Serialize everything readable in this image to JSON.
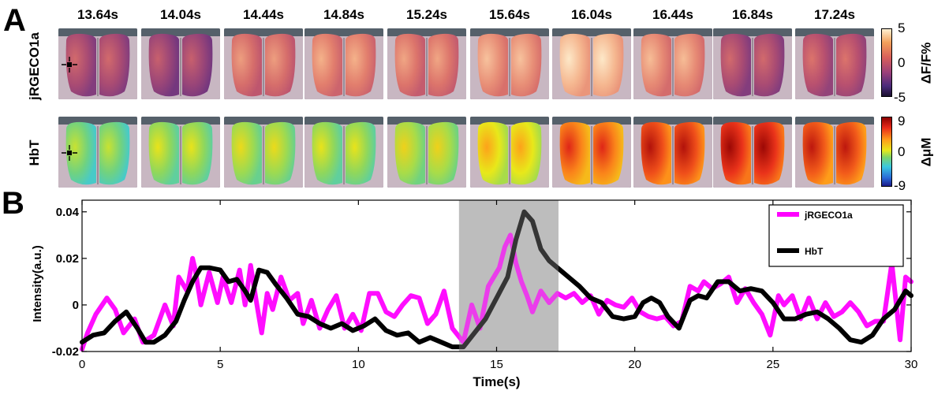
{
  "panels": {
    "a_letter": "A",
    "b_letter": "B"
  },
  "timepoints": [
    "13.64s",
    "14.04s",
    "14.44s",
    "14.84s",
    "15.24s",
    "15.64s",
    "16.04s",
    "16.44s",
    "16.84s",
    "17.24s"
  ],
  "rows": [
    {
      "label": "jRGECO1a",
      "colorbar": {
        "max": "5",
        "mid": "0",
        "min": "-5",
        "unit": "ΔF/F%"
      }
    },
    {
      "label": "HbT",
      "colorbar": {
        "max": "9",
        "mid": "0",
        "min": "-9",
        "unit": "ΔμM"
      }
    }
  ],
  "colors": {
    "jrgeco": "#ff00ff",
    "hbt": "#000000",
    "shade": "#bdbdbd"
  },
  "frame_levels": {
    "jrgeco": [
      0.35,
      0.3,
      0.55,
      0.62,
      0.58,
      0.68,
      0.82,
      0.66,
      0.35,
      0.4
    ],
    "hbt": [
      0.3,
      0.36,
      0.38,
      0.36,
      0.4,
      0.5,
      0.7,
      0.78,
      0.82,
      0.76
    ]
  },
  "chart_data": {
    "type": "line",
    "xlabel": "Time(s)",
    "ylabel": "Intensity(a.u.)",
    "xlim": [
      0,
      30
    ],
    "ylim": [
      -0.02,
      0.045
    ],
    "xticks": [
      0,
      5,
      10,
      15,
      20,
      25,
      30
    ],
    "yticks": [
      -0.02,
      0,
      0.02,
      0.04
    ],
    "ytick_labels": [
      "-0.02",
      "0",
      "0.02",
      "0.04"
    ],
    "shaded_interval": [
      13.64,
      17.24
    ],
    "legend_position": "top-right",
    "series": [
      {
        "name": "jRGECO1a",
        "x": [
          0,
          0.2,
          0.5,
          0.9,
          1.2,
          1.5,
          1.9,
          2.2,
          2.6,
          3.0,
          3.3,
          3.5,
          3.8,
          4.0,
          4.1,
          4.3,
          4.6,
          4.9,
          5.1,
          5.4,
          5.7,
          5.9,
          6.1,
          6.3,
          6.5,
          6.7,
          6.9,
          7.2,
          7.5,
          7.8,
          8.0,
          8.3,
          8.6,
          8.9,
          9.2,
          9.5,
          9.8,
          10.1,
          10.4,
          10.7,
          11.0,
          11.3,
          11.6,
          11.9,
          12.2,
          12.5,
          12.8,
          13.1,
          13.4,
          13.8,
          14.1,
          14.4,
          14.7,
          14.9,
          15.1,
          15.3,
          15.5,
          15.7,
          15.9,
          16.1,
          16.3,
          16.6,
          16.9,
          17.2,
          17.5,
          17.8,
          18.1,
          18.4,
          18.7,
          19.0,
          19.3,
          19.6,
          19.9,
          20.2,
          20.5,
          20.8,
          21.1,
          21.4,
          21.7,
          22.0,
          22.3,
          22.5,
          22.8,
          23.1,
          23.4,
          23.7,
          24.0,
          24.3,
          24.6,
          24.9,
          25.2,
          25.4,
          25.7,
          26.0,
          26.3,
          26.6,
          26.9,
          27.2,
          27.5,
          27.8,
          28.1,
          28.4,
          28.7,
          29.0,
          29.3,
          29.6,
          29.8,
          30.0
        ],
        "y": [
          -0.019,
          -0.012,
          -0.004,
          0.003,
          -0.002,
          -0.012,
          -0.006,
          -0.016,
          -0.013,
          0.0,
          -0.009,
          0.012,
          0.006,
          0.02,
          0.015,
          0.0,
          0.014,
          0.001,
          0.012,
          0.001,
          0.015,
          0.0,
          0.017,
          0.002,
          -0.012,
          0.005,
          -0.002,
          0.012,
          0.002,
          0.005,
          -0.008,
          0.002,
          -0.01,
          -0.002,
          0.004,
          -0.01,
          -0.004,
          -0.011,
          0.005,
          0.005,
          -0.003,
          -0.005,
          0.0,
          0.004,
          0.003,
          -0.008,
          -0.004,
          0.006,
          -0.01,
          -0.016,
          0.0,
          -0.01,
          0.008,
          0.012,
          0.016,
          0.025,
          0.03,
          0.018,
          0.01,
          0.004,
          -0.003,
          0.006,
          0.001,
          0.005,
          0.003,
          0.005,
          0.001,
          0.004,
          -0.004,
          0.002,
          0.0,
          -0.001,
          0.003,
          -0.003,
          -0.005,
          -0.006,
          -0.005,
          -0.009,
          -0.007,
          0.008,
          0.006,
          0.01,
          0.007,
          0.009,
          0.012,
          0.001,
          0.007,
          0.001,
          -0.004,
          -0.013,
          0.004,
          0.0,
          0.004,
          -0.006,
          0.003,
          -0.006,
          0.001,
          -0.005,
          -0.003,
          0.001,
          -0.003,
          -0.009,
          -0.007,
          -0.007,
          0.018,
          -0.015,
          0.012,
          0.01
        ]
      },
      {
        "name": "HbT",
        "x": [
          0,
          0.4,
          0.8,
          1.2,
          1.6,
          2.0,
          2.3,
          2.6,
          3.0,
          3.4,
          3.7,
          4.0,
          4.3,
          4.6,
          5.0,
          5.3,
          5.6,
          5.9,
          6.1,
          6.4,
          6.7,
          7.0,
          7.4,
          7.8,
          8.2,
          8.6,
          9.0,
          9.4,
          9.8,
          10.2,
          10.6,
          11.0,
          11.4,
          11.8,
          12.2,
          12.6,
          13.0,
          13.4,
          13.8,
          14.2,
          14.6,
          15.0,
          15.4,
          15.7,
          16.0,
          16.3,
          16.6,
          16.9,
          17.2,
          17.6,
          18.0,
          18.4,
          18.8,
          19.2,
          19.6,
          20.0,
          20.3,
          20.6,
          20.9,
          21.2,
          21.6,
          22.0,
          22.3,
          22.6,
          23.0,
          23.4,
          23.8,
          24.2,
          24.6,
          25.0,
          25.4,
          25.8,
          26.2,
          26.6,
          27.0,
          27.4,
          27.8,
          28.2,
          28.6,
          29.0,
          29.4,
          29.8,
          30.0
        ],
        "y": [
          -0.016,
          -0.013,
          -0.012,
          -0.007,
          -0.003,
          -0.01,
          -0.016,
          -0.016,
          -0.013,
          -0.007,
          0.002,
          0.01,
          0.016,
          0.016,
          0.015,
          0.01,
          0.011,
          0.006,
          0.002,
          0.015,
          0.014,
          0.009,
          0.003,
          -0.004,
          -0.005,
          -0.008,
          -0.01,
          -0.008,
          -0.011,
          -0.009,
          -0.006,
          -0.011,
          -0.013,
          -0.012,
          -0.016,
          -0.014,
          -0.016,
          -0.018,
          -0.018,
          -0.012,
          -0.006,
          0.003,
          0.012,
          0.028,
          0.04,
          0.036,
          0.024,
          0.019,
          0.016,
          0.012,
          0.008,
          0.003,
          0.001,
          -0.005,
          -0.006,
          -0.005,
          0.001,
          0.003,
          0.001,
          -0.005,
          -0.01,
          0.002,
          0.004,
          0.003,
          0.01,
          0.01,
          0.006,
          0.007,
          0.006,
          0.001,
          -0.006,
          -0.006,
          -0.004,
          -0.003,
          -0.006,
          -0.01,
          -0.015,
          -0.016,
          -0.013,
          -0.006,
          -0.002,
          0.006,
          0.004
        ]
      }
    ]
  }
}
